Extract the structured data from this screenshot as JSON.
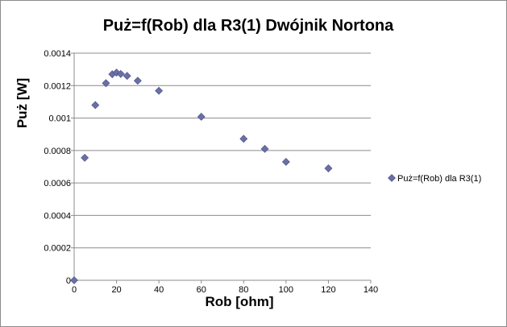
{
  "chart_data": {
    "type": "scatter",
    "title": "Puż=f(Rob) dla R3(1) Dwójnik Nortona",
    "xlabel": "Rob [ohm]",
    "ylabel": "Puż [W]",
    "xlim": [
      0,
      140
    ],
    "ylim": [
      0,
      0.0014
    ],
    "xticks": [
      "0",
      "20",
      "40",
      "60",
      "80",
      "100",
      "120",
      "140"
    ],
    "yticks": [
      "0",
      "0.0002",
      "0.0004",
      "0.0006",
      "0.0008",
      "0.001",
      "0.0012",
      "0.0014"
    ],
    "grid": "horizontal major gridlines",
    "legend_position": "right",
    "series": [
      {
        "name": "Puż=f(Rob) dla R3(1)",
        "color": "#6a6fa6",
        "marker": "diamond",
        "points": [
          [
            0,
            0.0
          ],
          [
            5,
            0.000755
          ],
          [
            10,
            0.00108
          ],
          [
            15,
            0.001215
          ],
          [
            18,
            0.00127
          ],
          [
            20,
            0.00128
          ],
          [
            22,
            0.001272
          ],
          [
            25,
            0.00126
          ],
          [
            30,
            0.00123
          ],
          [
            40,
            0.001168
          ],
          [
            60,
            0.001008
          ],
          [
            80,
            0.000872
          ],
          [
            90,
            0.00081
          ],
          [
            100,
            0.00073
          ],
          [
            120,
            0.00069
          ]
        ]
      }
    ]
  }
}
